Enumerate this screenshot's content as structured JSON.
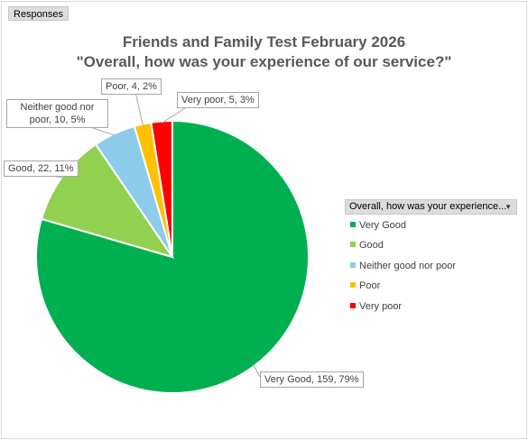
{
  "field_button": "Responses",
  "title_lines": [
    "Friends and Family Test February 2026",
    "\"Overall, how was your experience of our service?\""
  ],
  "legend_header": "Overall, how was your experience...",
  "legend_dropdown_icon": "dropdown-arrow-icon",
  "chart_data": {
    "type": "pie",
    "title": "Friends and Family Test February 2026 \"Overall, how was your experience of our service?\"",
    "legend_title": "Overall, how was your experience...",
    "legend_position": "right",
    "categories": [
      "Very Good",
      "Good",
      "Neither good nor poor",
      "Poor",
      "Very poor"
    ],
    "values": [
      159,
      22,
      10,
      4,
      5
    ],
    "percent_labels": [
      "79%",
      "11%",
      "5%",
      "2%",
      "3%"
    ],
    "colors": [
      "#00b050",
      "#92d050",
      "#8ccbea",
      "#ffc000",
      "#ff0000"
    ],
    "data_labels": [
      "Very Good, 159, 79%",
      "Good, 22, 11%",
      "Neither good nor poor, 10, 5%",
      "Poor, 4, 2%",
      "Very poor, 5, 3%"
    ]
  }
}
